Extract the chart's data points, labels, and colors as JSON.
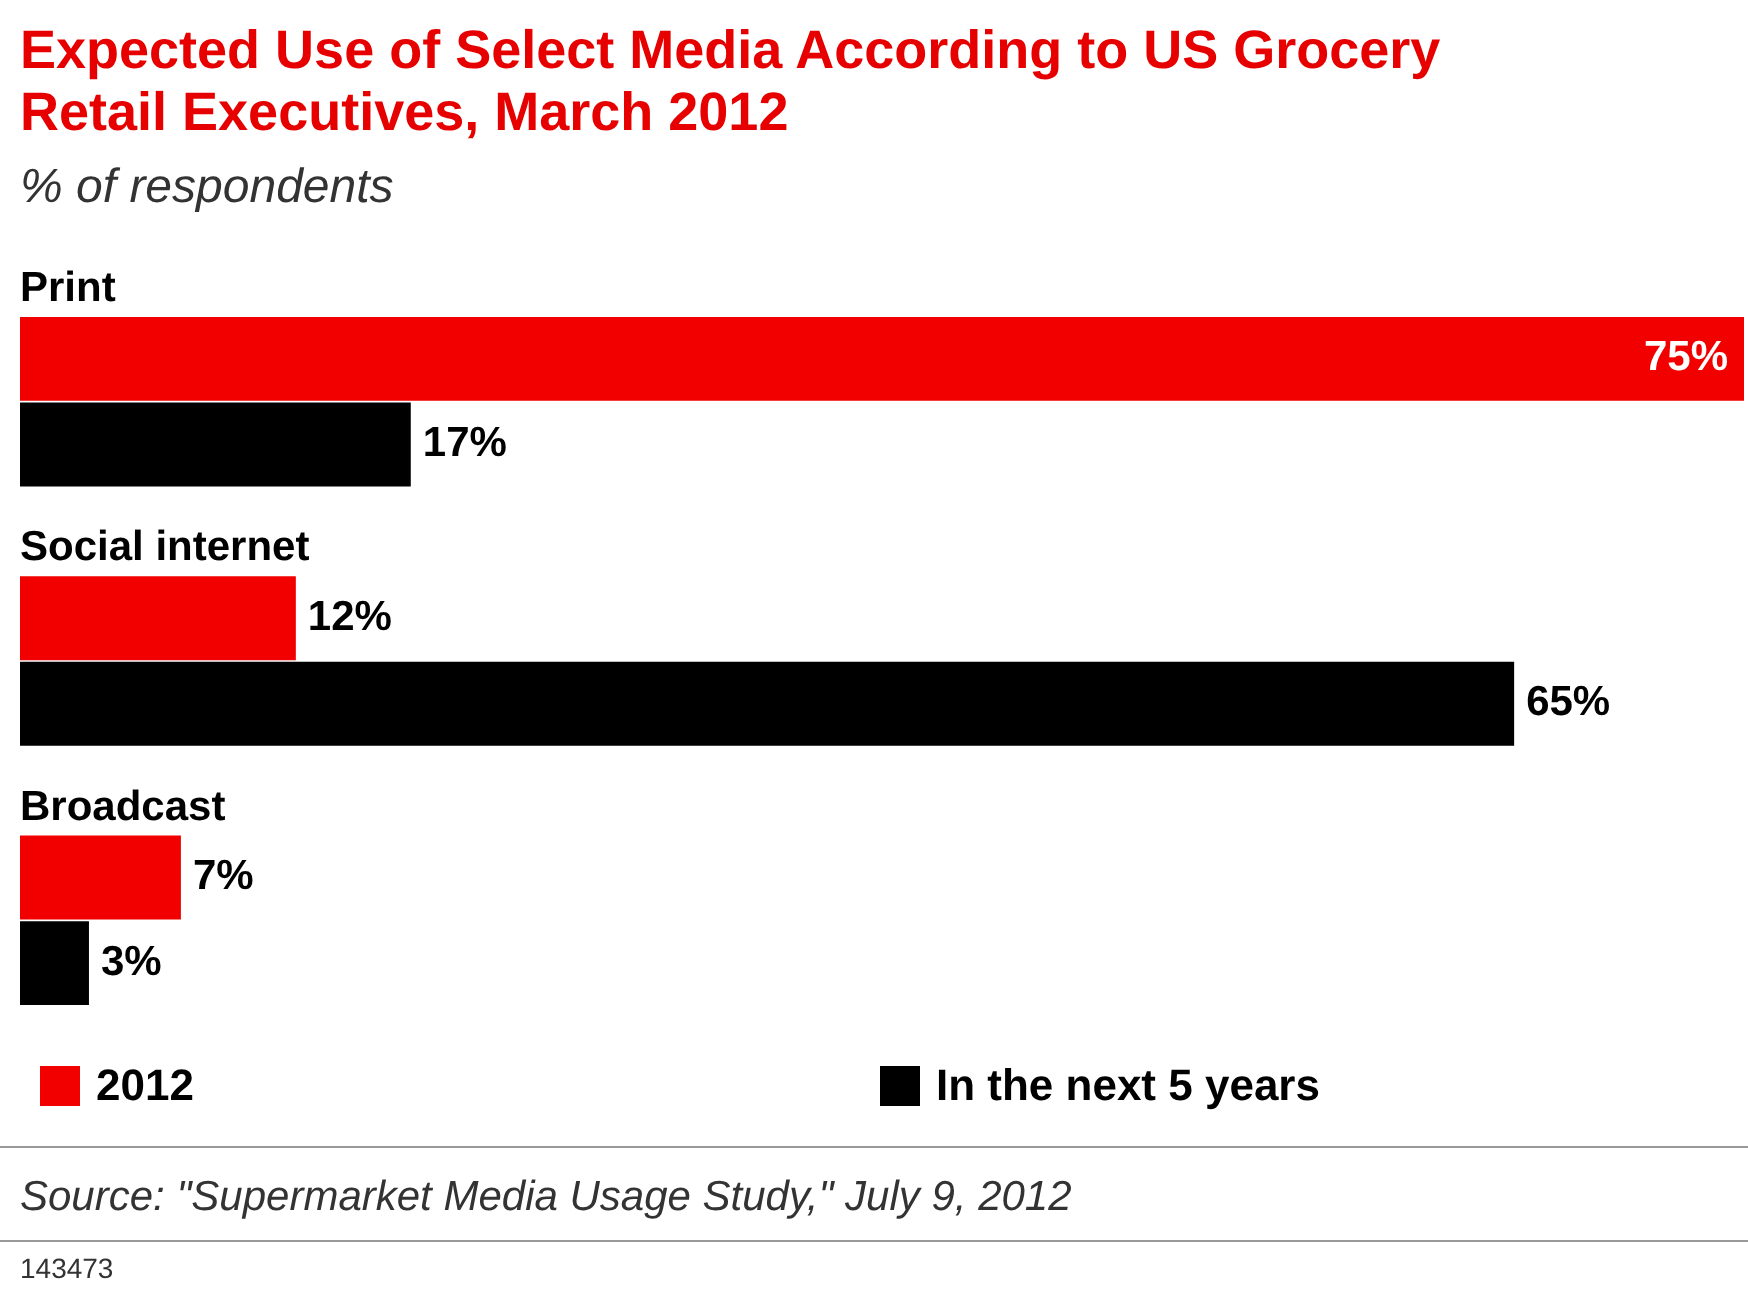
{
  "chart_data": {
    "type": "bar",
    "orientation": "horizontal",
    "title": "Expected Use of Select Media According to US Grocery Retail Executives, March 2012",
    "subtitle": "% of respondents",
    "categories": [
      "Print",
      "Social internet",
      "Broadcast"
    ],
    "series": [
      {
        "name": "2012",
        "color": "#f20000",
        "values": [
          75,
          12,
          7
        ],
        "value_labels": [
          "75%",
          "12%",
          "7%"
        ]
      },
      {
        "name": "In the next 5 years",
        "color": "#000000",
        "values": [
          17,
          65,
          3
        ],
        "value_labels": [
          "17%",
          "65%",
          "3%"
        ]
      }
    ],
    "xlim": [
      0,
      75
    ],
    "grid": false,
    "legend": "bottom",
    "tick_labels": false,
    "annotations": [
      "Source: \"Supermarket Media Usage Study,\" July 9, 2012",
      "143473"
    ]
  }
}
